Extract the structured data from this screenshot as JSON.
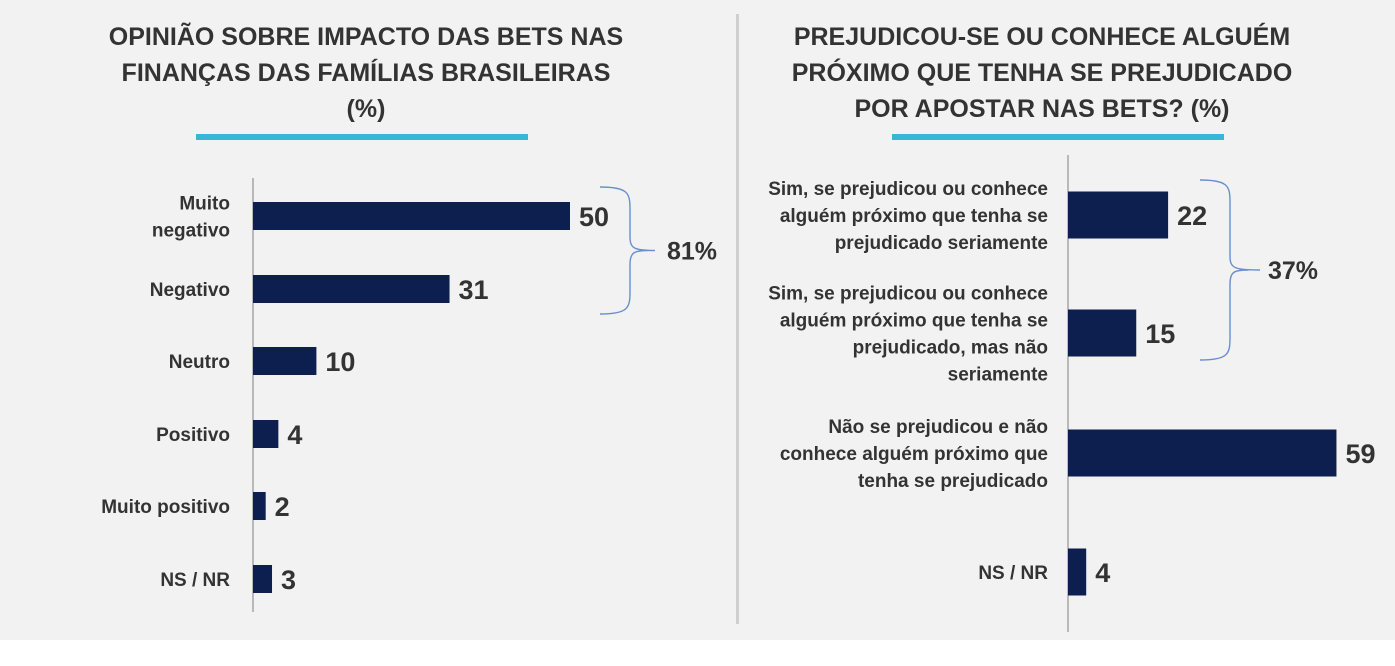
{
  "colors": {
    "bar": "#0d1f4f",
    "accent": "#3ab5d8",
    "bracket": "#6a8fcf",
    "text": "#333333"
  },
  "chart_data": [
    {
      "type": "bar",
      "orientation": "horizontal",
      "title_lines": [
        "OPINIÃO SOBRE IMPACTO DAS BETS NAS",
        "FINANÇAS DAS FAMÍLIAS BRASILEIRAS",
        "(%)"
      ],
      "categories": [
        [
          "Muito",
          "negativo"
        ],
        [
          "Negativo"
        ],
        [
          "Neutro"
        ],
        [
          "Positivo"
        ],
        [
          "Muito positivo"
        ],
        [
          "NS / NR"
        ]
      ],
      "values": [
        50,
        31,
        10,
        4,
        2,
        3
      ],
      "group_total": {
        "label": "81%",
        "covers": [
          "Muito negativo",
          "Negativo"
        ]
      }
    },
    {
      "type": "bar",
      "orientation": "horizontal",
      "title_lines": [
        "PREJUDICOU-SE OU CONHECE ALGUÉM",
        "PRÓXIMO QUE TENHA SE PREJUDICADO",
        "POR APOSTAR NAS BETS? (%)"
      ],
      "categories": [
        [
          "Sim, se prejudicou ou conhece",
          "alguém próximo que tenha se",
          "prejudicado seriamente"
        ],
        [
          "Sim, se prejudicou ou conhece",
          "alguém próximo que tenha se",
          "prejudicado, mas não",
          "seriamente"
        ],
        [
          "Não se prejudicou e não",
          "conhece alguém próximo que",
          "tenha se prejudicado"
        ],
        [
          "NS / NR"
        ]
      ],
      "values": [
        22,
        15,
        59,
        4
      ],
      "group_total": {
        "label": "37%",
        "covers": [
          "Sim, seriamente",
          "Sim, mas não seriamente"
        ]
      }
    }
  ]
}
